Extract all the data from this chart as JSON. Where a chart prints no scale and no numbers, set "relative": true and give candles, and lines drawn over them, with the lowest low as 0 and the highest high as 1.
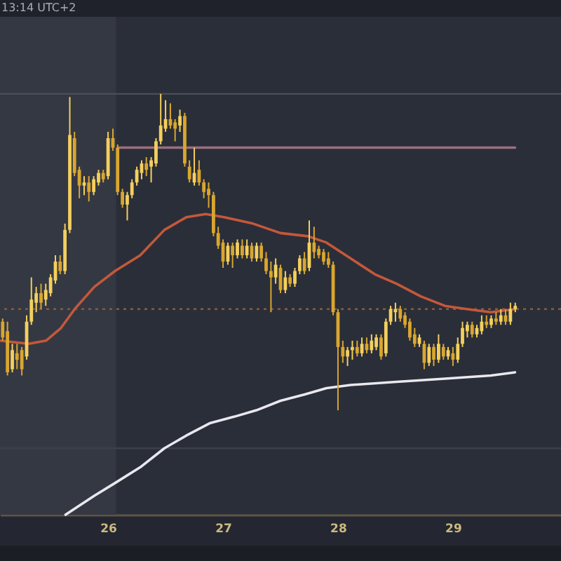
{
  "chart_data": {
    "type": "candlestick",
    "relative": true,
    "annotations": [
      "13:14 UTC+2"
    ],
    "xlim": [
      25.06,
      29.94
    ],
    "xticks": [
      26,
      27,
      28,
      29
    ],
    "colors": [
      "#d9a62e",
      "#d9a62e",
      "#f4cf5d",
      "#d9a62e",
      "#d9a62e",
      "#f4cf5d",
      "#f4cf5d",
      "#f4cf5d",
      "#d9a62e",
      "#f4cf5d",
      "#f4cf5d",
      "#f4cf5d",
      "#d9a62e",
      "#f4cf5d",
      "#f4cf5d",
      "#d9a62e",
      "#d9a62e",
      "#f4cf5d",
      "#d9a62e",
      "#f4cf5d",
      "#f4cf5d",
      "#d9a62e",
      "#f4cf5d",
      "#d9a62e",
      "#d9a62e",
      "#d9a62e",
      "#f4cf5d",
      "#f4cf5d",
      "#f4cf5d",
      "#f4cf5d",
      "#d9a62e",
      "#f4cf5d",
      "#f4cf5d",
      "#f4cf5d",
      "#f4cf5d",
      "#d9a62e",
      "#d9a62e",
      "#f4cf5d",
      "#d9a62e",
      "#d9a62e",
      "#f4cf5d",
      "#d9a62e",
      "#d9a62e",
      "#d9a62e",
      "#d9a62e",
      "#d9a62e",
      "#d9a62e",
      "#f4cf5d",
      "#d9a62e",
      "#f4cf5d",
      "#d9a62e",
      "#f4cf5d",
      "#d9a62e",
      "#f4cf5d",
      "#d9a62e",
      "#d9a62e",
      "#d9a62e",
      "#f4cf5d",
      "#d9a62e",
      "#f4cf5d",
      "#d9a62e",
      "#f4cf5d",
      "#f4cf5d",
      "#d9a62e",
      "#f4cf5d",
      "#d9a62e",
      "#d9a62e",
      "#d9a62e",
      "#d9a62e",
      "#d9a62e",
      "#d9a62e",
      "#d9a62e",
      "#f4cf5d",
      "#f4cf5d",
      "#d9a62e",
      "#f4cf5d",
      "#d9a62e",
      "#f4cf5d",
      "#f4cf5d",
      "#d9a62e",
      "#f4cf5d",
      "#f4cf5d",
      "#f4cf5d",
      "#d9a62e",
      "#d9a62e",
      "#d9a62e",
      "#d9a62e",
      "#f4cf5d",
      "#d9a62e",
      "#f4cf5d",
      "#d9a62e",
      "#f4cf5d",
      "#d9a62e",
      "#f4cf5d",
      "#d9a62e",
      "#f4cf5d",
      "#f4cf5d",
      "#f4cf5d",
      "#d9a62e",
      "#f4cf5d",
      "#f4cf5d",
      "#d9a62e",
      "#f4cf5d",
      "#d9a62e",
      "#f4cf5d",
      "#d9a62e",
      "#f4cf5d",
      "#f4cf5d"
    ],
    "x": [
      25.083,
      25.125,
      25.167,
      25.208,
      25.25,
      25.292,
      25.333,
      25.375,
      25.417,
      25.458,
      25.5,
      25.542,
      25.583,
      25.625,
      25.667,
      25.708,
      25.75,
      25.792,
      25.833,
      25.875,
      25.917,
      25.958,
      26,
      26.042,
      26.083,
      26.125,
      26.167,
      26.208,
      26.25,
      26.292,
      26.333,
      26.375,
      26.417,
      26.458,
      26.5,
      26.542,
      26.583,
      26.625,
      26.667,
      26.708,
      26.75,
      26.792,
      26.833,
      26.875,
      26.917,
      26.958,
      27,
      27.042,
      27.083,
      27.125,
      27.167,
      27.208,
      27.25,
      27.292,
      27.333,
      27.375,
      27.417,
      27.458,
      27.5,
      27.542,
      27.583,
      27.625,
      27.667,
      27.708,
      27.75,
      27.792,
      27.833,
      27.875,
      27.917,
      27.958,
      28,
      28.042,
      28.083,
      28.125,
      28.167,
      28.208,
      28.25,
      28.292,
      28.333,
      28.375,
      28.417,
      28.458,
      28.5,
      28.542,
      28.583,
      28.625,
      28.667,
      28.708,
      28.75,
      28.792,
      28.833,
      28.875,
      28.917,
      28.958,
      29,
      29.042,
      29.083,
      29.125,
      29.167,
      29.208,
      29.25,
      29.292,
      29.333,
      29.375,
      29.417,
      29.458,
      29.5,
      29.542
    ],
    "ohlc": [
      [
        0.28,
        0.29,
        0.22,
        0.23
      ],
      [
        0.25,
        0.28,
        0.11,
        0.12
      ],
      [
        0.13,
        0.21,
        0.12,
        0.19
      ],
      [
        0.18,
        0.21,
        0.13,
        0.16
      ],
      [
        0.19,
        0.2,
        0.11,
        0.13
      ],
      [
        0.17,
        0.3,
        0.16,
        0.28
      ],
      [
        0.28,
        0.42,
        0.27,
        0.35
      ],
      [
        0.34,
        0.39,
        0.31,
        0.37
      ],
      [
        0.37,
        0.4,
        0.32,
        0.34
      ],
      [
        0.35,
        0.4,
        0.33,
        0.38
      ],
      [
        0.37,
        0.43,
        0.36,
        0.42
      ],
      [
        0.41,
        0.49,
        0.4,
        0.47
      ],
      [
        0.47,
        0.49,
        0.43,
        0.44
      ],
      [
        0.44,
        0.59,
        0.43,
        0.57
      ],
      [
        0.57,
        0.99,
        0.56,
        0.87
      ],
      [
        0.86,
        0.88,
        0.74,
        0.75
      ],
      [
        0.76,
        0.77,
        0.67,
        0.71
      ],
      [
        0.71,
        0.74,
        0.68,
        0.72
      ],
      [
        0.72,
        0.74,
        0.66,
        0.69
      ],
      [
        0.69,
        0.74,
        0.68,
        0.73
      ],
      [
        0.72,
        0.76,
        0.71,
        0.75
      ],
      [
        0.75,
        0.76,
        0.72,
        0.73
      ],
      [
        0.74,
        0.88,
        0.73,
        0.86
      ],
      [
        0.86,
        0.89,
        0.82,
        0.83
      ],
      [
        0.83,
        0.84,
        0.68,
        0.69
      ],
      [
        0.69,
        0.7,
        0.64,
        0.65
      ],
      [
        0.65,
        0.69,
        0.6,
        0.68
      ],
      [
        0.68,
        0.73,
        0.67,
        0.72
      ],
      [
        0.72,
        0.77,
        0.71,
        0.76
      ],
      [
        0.75,
        0.79,
        0.73,
        0.78
      ],
      [
        0.78,
        0.8,
        0.74,
        0.76
      ],
      [
        0.77,
        0.8,
        0.72,
        0.79
      ],
      [
        0.78,
        0.86,
        0.77,
        0.85
      ],
      [
        0.85,
        1,
        0.84,
        0.9
      ],
      [
        0.89,
        0.98,
        0.88,
        0.92
      ],
      [
        0.92,
        0.97,
        0.89,
        0.9
      ],
      [
        0.91,
        0.92,
        0.85,
        0.89
      ],
      [
        0.9,
        0.95,
        0.88,
        0.93
      ],
      [
        0.93,
        0.94,
        0.77,
        0.78
      ],
      [
        0.77,
        0.79,
        0.72,
        0.73
      ],
      [
        0.72,
        0.83,
        0.71,
        0.75
      ],
      [
        0.76,
        0.79,
        0.71,
        0.72
      ],
      [
        0.72,
        0.73,
        0.67,
        0.69
      ],
      [
        0.7,
        0.72,
        0.64,
        0.68
      ],
      [
        0.68,
        0.69,
        0.55,
        0.56
      ],
      [
        0.56,
        0.58,
        0.51,
        0.52
      ],
      [
        0.53,
        0.54,
        0.45,
        0.47
      ],
      [
        0.47,
        0.53,
        0.46,
        0.52
      ],
      [
        0.52,
        0.53,
        0.45,
        0.49
      ],
      [
        0.49,
        0.54,
        0.48,
        0.53
      ],
      [
        0.52,
        0.54,
        0.48,
        0.49
      ],
      [
        0.49,
        0.54,
        0.48,
        0.52
      ],
      [
        0.52,
        0.53,
        0.47,
        0.48
      ],
      [
        0.48,
        0.53,
        0.47,
        0.52
      ],
      [
        0.52,
        0.53,
        0.47,
        0.48
      ],
      [
        0.48,
        0.5,
        0.43,
        0.44
      ],
      [
        0.44,
        0.47,
        0.31,
        0.42
      ],
      [
        0.42,
        0.48,
        0.4,
        0.46
      ],
      [
        0.45,
        0.46,
        0.37,
        0.38
      ],
      [
        0.38,
        0.44,
        0.37,
        0.42
      ],
      [
        0.42,
        0.43,
        0.39,
        0.4
      ],
      [
        0.4,
        0.45,
        0.39,
        0.44
      ],
      [
        0.44,
        0.49,
        0.43,
        0.48
      ],
      [
        0.48,
        0.5,
        0.43,
        0.44
      ],
      [
        0.45,
        0.6,
        0.44,
        0.53
      ],
      [
        0.53,
        0.58,
        0.48,
        0.5
      ],
      [
        0.51,
        0.52,
        0.48,
        0.49
      ],
      [
        0.5,
        0.51,
        0.46,
        0.47
      ],
      [
        0.48,
        0.5,
        0.45,
        0.46
      ],
      [
        0.46,
        0.47,
        0.3,
        0.31
      ],
      [
        0.31,
        0.32,
        0,
        0.2
      ],
      [
        0.2,
        0.22,
        0.15,
        0.17
      ],
      [
        0.17,
        0.2,
        0.14,
        0.19
      ],
      [
        0.19,
        0.22,
        0.16,
        0.2
      ],
      [
        0.2,
        0.22,
        0.17,
        0.18
      ],
      [
        0.18,
        0.23,
        0.17,
        0.21
      ],
      [
        0.21,
        0.23,
        0.18,
        0.19
      ],
      [
        0.19,
        0.24,
        0.18,
        0.22
      ],
      [
        0.2,
        0.24,
        0.19,
        0.23
      ],
      [
        0.23,
        0.24,
        0.16,
        0.17
      ],
      [
        0.18,
        0.29,
        0.17,
        0.28
      ],
      [
        0.28,
        0.33,
        0.27,
        0.32
      ],
      [
        0.31,
        0.34,
        0.28,
        0.32
      ],
      [
        0.32,
        0.33,
        0.28,
        0.29
      ],
      [
        0.3,
        0.31,
        0.26,
        0.27
      ],
      [
        0.28,
        0.29,
        0.22,
        0.23
      ],
      [
        0.24,
        0.26,
        0.2,
        0.21
      ],
      [
        0.21,
        0.24,
        0.2,
        0.23
      ],
      [
        0.21,
        0.22,
        0.13,
        0.15
      ],
      [
        0.15,
        0.21,
        0.14,
        0.2
      ],
      [
        0.2,
        0.21,
        0.14,
        0.16
      ],
      [
        0.16,
        0.24,
        0.15,
        0.21
      ],
      [
        0.2,
        0.21,
        0.16,
        0.17
      ],
      [
        0.17,
        0.2,
        0.16,
        0.19
      ],
      [
        0.18,
        0.2,
        0.14,
        0.16
      ],
      [
        0.16,
        0.23,
        0.15,
        0.21
      ],
      [
        0.21,
        0.28,
        0.2,
        0.26
      ],
      [
        0.25,
        0.28,
        0.23,
        0.27
      ],
      [
        0.27,
        0.28,
        0.23,
        0.24
      ],
      [
        0.24,
        0.27,
        0.23,
        0.26
      ],
      [
        0.25,
        0.3,
        0.24,
        0.28
      ],
      [
        0.28,
        0.3,
        0.26,
        0.27
      ],
      [
        0.27,
        0.3,
        0.26,
        0.29
      ],
      [
        0.29,
        0.31,
        0.27,
        0.28
      ],
      [
        0.28,
        0.32,
        0.27,
        0.3
      ],
      [
        0.3,
        0.32,
        0.27,
        0.28
      ],
      [
        0.28,
        0.34,
        0.27,
        0.32
      ],
      [
        0.32,
        0.34,
        0.31,
        0.33
      ]
    ],
    "series": [
      {
        "type": "line",
        "color": "#c4583a",
        "x": [
          25.06,
          25.31,
          25.46,
          25.59,
          25.71,
          25.88,
          26.06,
          26.28,
          26.49,
          26.68,
          26.85,
          27.01,
          27.26,
          27.5,
          27.74,
          27.9,
          28.11,
          28.32,
          28.51,
          28.72,
          28.93,
          29.12,
          29.33,
          29.54
        ],
        "values": [
          0.22,
          0.21,
          0.22,
          0.26,
          0.32,
          0.39,
          0.44,
          0.49,
          0.57,
          0.61,
          0.62,
          0.61,
          0.59,
          0.56,
          0.55,
          0.53,
          0.48,
          0.43,
          0.4,
          0.36,
          0.33,
          0.32,
          0.31,
          0.32
        ]
      },
      {
        "type": "line",
        "color": "#e8e8ee",
        "x": [
          25.63,
          25.88,
          26.06,
          26.28,
          26.49,
          26.68,
          26.89,
          27.1,
          27.29,
          27.5,
          27.71,
          27.9,
          28.11,
          28.51,
          28.93,
          29.33,
          29.54
        ],
        "values": [
          -0.33,
          -0.27,
          -0.23,
          -0.18,
          -0.12,
          -0.08,
          -0.04,
          -0.02,
          0,
          0.03,
          0.05,
          0.07,
          0.08,
          0.09,
          0.1,
          0.11,
          0.12
        ]
      },
      {
        "type": "line",
        "color": "#9c6f7d",
        "x": [
          26.09,
          29.54
        ],
        "values": [
          0.83,
          0.83
        ]
      }
    ],
    "ref_lines": [
      {
        "axis": "y",
        "value": 1,
        "color": "#4b4f5b"
      },
      {
        "axis": "y",
        "value": 0.32,
        "color": "#8c5a3a",
        "line_style": "dotted"
      },
      {
        "axis": "y",
        "value": -0.12,
        "color": "#3c404b"
      }
    ],
    "bands": [
      {
        "axis": "x",
        "from": 25.06,
        "to": 26.07,
        "color": "#343843"
      }
    ]
  }
}
